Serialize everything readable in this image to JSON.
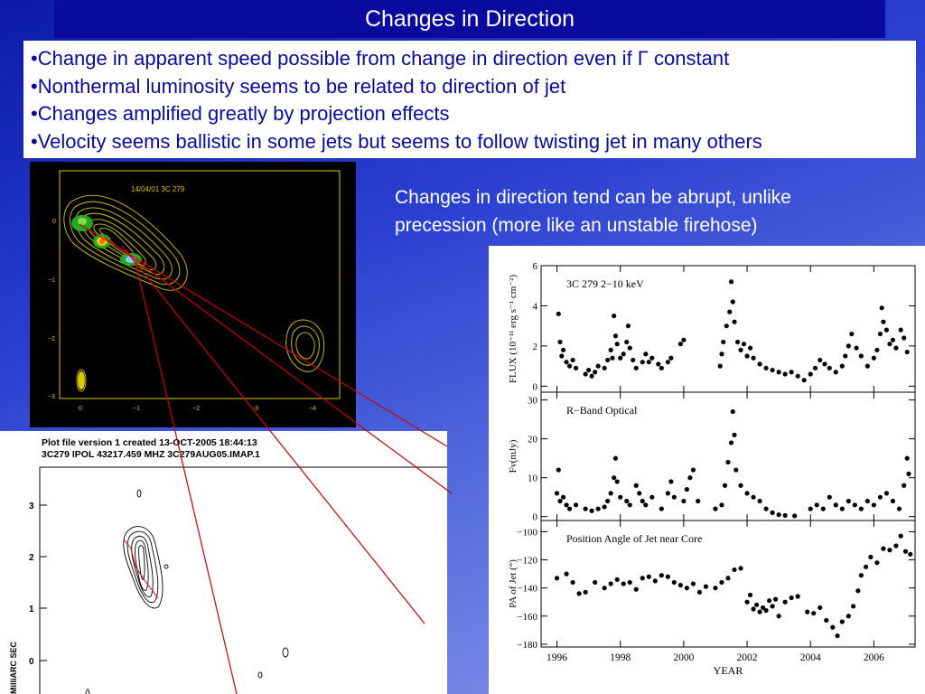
{
  "slide": {
    "title": "Changes in Direction",
    "bullets": [
      "•Change in apparent speed possible from change in direction even if Γ constant",
      "•Nonthermal luminosity seems to be related to direction of jet",
      "•Changes amplified greatly by projection effects",
      "•Velocity seems ballistic in some jets but seems to follow twisting jet in many others"
    ],
    "caption_lines": [
      "Changes in direction tend can be abrupt, unlike",
      "precession (more like an unstable firehose)"
    ]
  },
  "radio_map_top": {
    "header": "14/04/01    3C 279",
    "y_ticks": [
      "0",
      "−1",
      "−2",
      "−3"
    ],
    "x_ticks": [
      "0",
      "−1",
      "−2",
      "−3",
      "−4"
    ]
  },
  "radio_map_bottom": {
    "header_line1": "Plot file version 1  created 13-OCT-2005 18:44:13",
    "header_line2": "3C279  IPOL  43217.459 MHZ  3C279AUG05.IMAP.1",
    "y_axis_label": "MilliARC SEC",
    "y_ticks": [
      "3",
      "2",
      "1",
      "0"
    ]
  },
  "chart_data": [
    {
      "type": "scatter",
      "title": "3C 279   2−10 keV",
      "ylabel": "FLUX (10⁻¹¹ erg s⁻¹ cm⁻²)",
      "xlim": [
        1995.5,
        2007.3
      ],
      "ylim": [
        -0.3,
        6
      ],
      "y_ticks": [
        0,
        2,
        4,
        6
      ],
      "points": [
        [
          1996.05,
          3.6
        ],
        [
          1996.1,
          2.2
        ],
        [
          1996.15,
          1.5
        ],
        [
          1996.2,
          1.8
        ],
        [
          1996.3,
          1.2
        ],
        [
          1996.4,
          1.0
        ],
        [
          1996.5,
          1.3
        ],
        [
          1996.6,
          0.9
        ],
        [
          1996.9,
          0.6
        ],
        [
          1997.0,
          0.8
        ],
        [
          1997.1,
          0.5
        ],
        [
          1997.2,
          0.7
        ],
        [
          1997.3,
          1.0
        ],
        [
          1997.5,
          0.9
        ],
        [
          1997.6,
          1.3
        ],
        [
          1997.7,
          1.8
        ],
        [
          1997.75,
          1.4
        ],
        [
          1997.8,
          3.5
        ],
        [
          1997.85,
          2.5
        ],
        [
          1997.9,
          2.1
        ],
        [
          1998.0,
          1.4
        ],
        [
          1998.1,
          1.6
        ],
        [
          1998.2,
          2.2
        ],
        [
          1998.25,
          3.0
        ],
        [
          1998.3,
          1.9
        ],
        [
          1998.4,
          1.3
        ],
        [
          1998.5,
          0.9
        ],
        [
          1998.7,
          1.2
        ],
        [
          1998.8,
          1.6
        ],
        [
          1998.9,
          1.2
        ],
        [
          1999.0,
          1.4
        ],
        [
          1999.2,
          1.1
        ],
        [
          1999.3,
          0.9
        ],
        [
          1999.5,
          1.2
        ],
        [
          1999.6,
          1.4
        ],
        [
          1999.9,
          2.1
        ],
        [
          2000.0,
          2.3
        ],
        [
          2001.15,
          1.0
        ],
        [
          2001.2,
          1.6
        ],
        [
          2001.25,
          2.2
        ],
        [
          2001.35,
          3.0
        ],
        [
          2001.45,
          3.7
        ],
        [
          2001.5,
          5.2
        ],
        [
          2001.55,
          4.2
        ],
        [
          2001.6,
          3.2
        ],
        [
          2001.7,
          2.2
        ],
        [
          2001.8,
          1.8
        ],
        [
          2001.9,
          2.1
        ],
        [
          2002.0,
          1.5
        ],
        [
          2002.1,
          1.9
        ],
        [
          2002.2,
          1.4
        ],
        [
          2002.4,
          1.1
        ],
        [
          2002.6,
          0.9
        ],
        [
          2002.8,
          0.8
        ],
        [
          2003.0,
          0.7
        ],
        [
          2003.2,
          0.6
        ],
        [
          2003.4,
          0.7
        ],
        [
          2003.6,
          0.5
        ],
        [
          2003.8,
          0.3
        ],
        [
          2004.0,
          0.6
        ],
        [
          2004.15,
          0.9
        ],
        [
          2004.3,
          1.3
        ],
        [
          2004.45,
          1.1
        ],
        [
          2004.6,
          0.9
        ],
        [
          2004.8,
          0.7
        ],
        [
          2005.0,
          1.0
        ],
        [
          2005.1,
          1.5
        ],
        [
          2005.2,
          2.0
        ],
        [
          2005.3,
          2.6
        ],
        [
          2005.45,
          1.9
        ],
        [
          2005.6,
          1.5
        ],
        [
          2005.8,
          1.0
        ],
        [
          2006.0,
          1.4
        ],
        [
          2006.1,
          1.8
        ],
        [
          2006.2,
          2.6
        ],
        [
          2006.25,
          3.9
        ],
        [
          2006.3,
          3.2
        ],
        [
          2006.4,
          2.8
        ],
        [
          2006.5,
          2.1
        ],
        [
          2006.6,
          2.3
        ],
        [
          2006.7,
          1.9
        ],
        [
          2006.85,
          2.8
        ],
        [
          2006.95,
          2.4
        ],
        [
          2007.05,
          1.7
        ]
      ]
    },
    {
      "type": "scatter",
      "title": "R−Band Optical",
      "ylabel": "Fν(mJy)",
      "xlim": [
        1995.5,
        2007.3
      ],
      "ylim": [
        -1,
        32
      ],
      "y_ticks": [
        0,
        10,
        20,
        30
      ],
      "points": [
        [
          1996.0,
          6
        ],
        [
          1996.05,
          12
        ],
        [
          1996.1,
          4
        ],
        [
          1996.2,
          5
        ],
        [
          1996.3,
          3
        ],
        [
          1996.4,
          2
        ],
        [
          1996.6,
          3
        ],
        [
          1996.9,
          2
        ],
        [
          1997.1,
          1.5
        ],
        [
          1997.3,
          2
        ],
        [
          1997.5,
          2.5
        ],
        [
          1997.6,
          4
        ],
        [
          1997.7,
          6
        ],
        [
          1997.8,
          10
        ],
        [
          1997.85,
          15
        ],
        [
          1997.9,
          9
        ],
        [
          1998.0,
          5
        ],
        [
          1998.2,
          4
        ],
        [
          1998.3,
          3
        ],
        [
          1998.5,
          8
        ],
        [
          1998.6,
          6
        ],
        [
          1998.7,
          4
        ],
        [
          1998.8,
          3
        ],
        [
          1999.0,
          5
        ],
        [
          1999.3,
          2
        ],
        [
          1999.5,
          6
        ],
        [
          1999.6,
          9
        ],
        [
          1999.7,
          5
        ],
        [
          2000.0,
          4
        ],
        [
          2000.1,
          7
        ],
        [
          2000.2,
          10
        ],
        [
          2000.3,
          12
        ],
        [
          2000.45,
          4
        ],
        [
          2001.0,
          2
        ],
        [
          2001.2,
          3
        ],
        [
          2001.3,
          8
        ],
        [
          2001.4,
          14
        ],
        [
          2001.5,
          19
        ],
        [
          2001.55,
          27
        ],
        [
          2001.6,
          21
        ],
        [
          2001.65,
          12
        ],
        [
          2001.8,
          8
        ],
        [
          2002.0,
          6
        ],
        [
          2002.2,
          5
        ],
        [
          2002.4,
          4
        ],
        [
          2002.6,
          2
        ],
        [
          2002.8,
          1
        ],
        [
          2003.0,
          0.5
        ],
        [
          2003.2,
          0.3
        ],
        [
          2003.5,
          0.2
        ],
        [
          2004.0,
          2
        ],
        [
          2004.2,
          3
        ],
        [
          2004.4,
          2
        ],
        [
          2004.6,
          5
        ],
        [
          2004.8,
          3
        ],
        [
          2005.0,
          2
        ],
        [
          2005.2,
          4
        ],
        [
          2005.4,
          3
        ],
        [
          2005.6,
          2
        ],
        [
          2005.8,
          4
        ],
        [
          2006.0,
          3
        ],
        [
          2006.2,
          5
        ],
        [
          2006.4,
          6
        ],
        [
          2006.6,
          4
        ],
        [
          2006.8,
          2
        ],
        [
          2006.95,
          8
        ],
        [
          2007.05,
          15
        ],
        [
          2007.1,
          11
        ]
      ]
    },
    {
      "type": "scatter",
      "title": "Position Angle of Jet near Core",
      "ylabel": "PA of Jet (°)",
      "xlabel": "YEAR",
      "xlim": [
        1995.5,
        2007.3
      ],
      "ylim": [
        -182,
        -92
      ],
      "y_ticks": [
        -100,
        -120,
        -140,
        -160,
        -180
      ],
      "x_ticks": [
        1996,
        1998,
        2000,
        2002,
        2004,
        2006
      ],
      "points": [
        [
          1996.0,
          -133
        ],
        [
          1996.3,
          -130
        ],
        [
          1996.5,
          -136
        ],
        [
          1996.7,
          -144
        ],
        [
          1996.9,
          -143
        ],
        [
          1997.2,
          -136
        ],
        [
          1997.5,
          -140
        ],
        [
          1997.7,
          -137
        ],
        [
          1997.9,
          -134
        ],
        [
          1998.1,
          -137
        ],
        [
          1998.3,
          -136
        ],
        [
          1998.5,
          -141
        ],
        [
          1998.7,
          -133
        ],
        [
          1998.9,
          -132
        ],
        [
          1999.1,
          -135
        ],
        [
          1999.3,
          -131
        ],
        [
          1999.5,
          -132
        ],
        [
          1999.7,
          -136
        ],
        [
          1999.9,
          -138
        ],
        [
          2000.1,
          -140
        ],
        [
          2000.3,
          -137
        ],
        [
          2000.5,
          -143
        ],
        [
          2000.7,
          -139
        ],
        [
          2001.0,
          -140
        ],
        [
          2001.2,
          -136
        ],
        [
          2001.4,
          -133
        ],
        [
          2001.6,
          -127
        ],
        [
          2001.8,
          -126
        ],
        [
          2002.0,
          -150
        ],
        [
          2002.1,
          -145
        ],
        [
          2002.2,
          -155
        ],
        [
          2002.3,
          -152
        ],
        [
          2002.4,
          -157
        ],
        [
          2002.5,
          -154
        ],
        [
          2002.6,
          -156
        ],
        [
          2002.7,
          -149
        ],
        [
          2002.8,
          -153
        ],
        [
          2002.9,
          -148
        ],
        [
          2003.0,
          -160
        ],
        [
          2003.2,
          -150
        ],
        [
          2003.4,
          -147
        ],
        [
          2003.6,
          -146
        ],
        [
          2003.9,
          -157
        ],
        [
          2004.1,
          -158
        ],
        [
          2004.3,
          -154
        ],
        [
          2004.5,
          -163
        ],
        [
          2004.7,
          -168
        ],
        [
          2004.85,
          -174
        ],
        [
          2005.0,
          -164
        ],
        [
          2005.2,
          -160
        ],
        [
          2005.35,
          -153
        ],
        [
          2005.5,
          -142
        ],
        [
          2005.6,
          -131
        ],
        [
          2005.75,
          -125
        ],
        [
          2005.9,
          -118
        ],
        [
          2006.1,
          -122
        ],
        [
          2006.3,
          -112
        ],
        [
          2006.5,
          -113
        ],
        [
          2006.7,
          -110
        ],
        [
          2006.85,
          -103
        ],
        [
          2007.0,
          -114
        ],
        [
          2007.15,
          -116
        ]
      ]
    }
  ]
}
